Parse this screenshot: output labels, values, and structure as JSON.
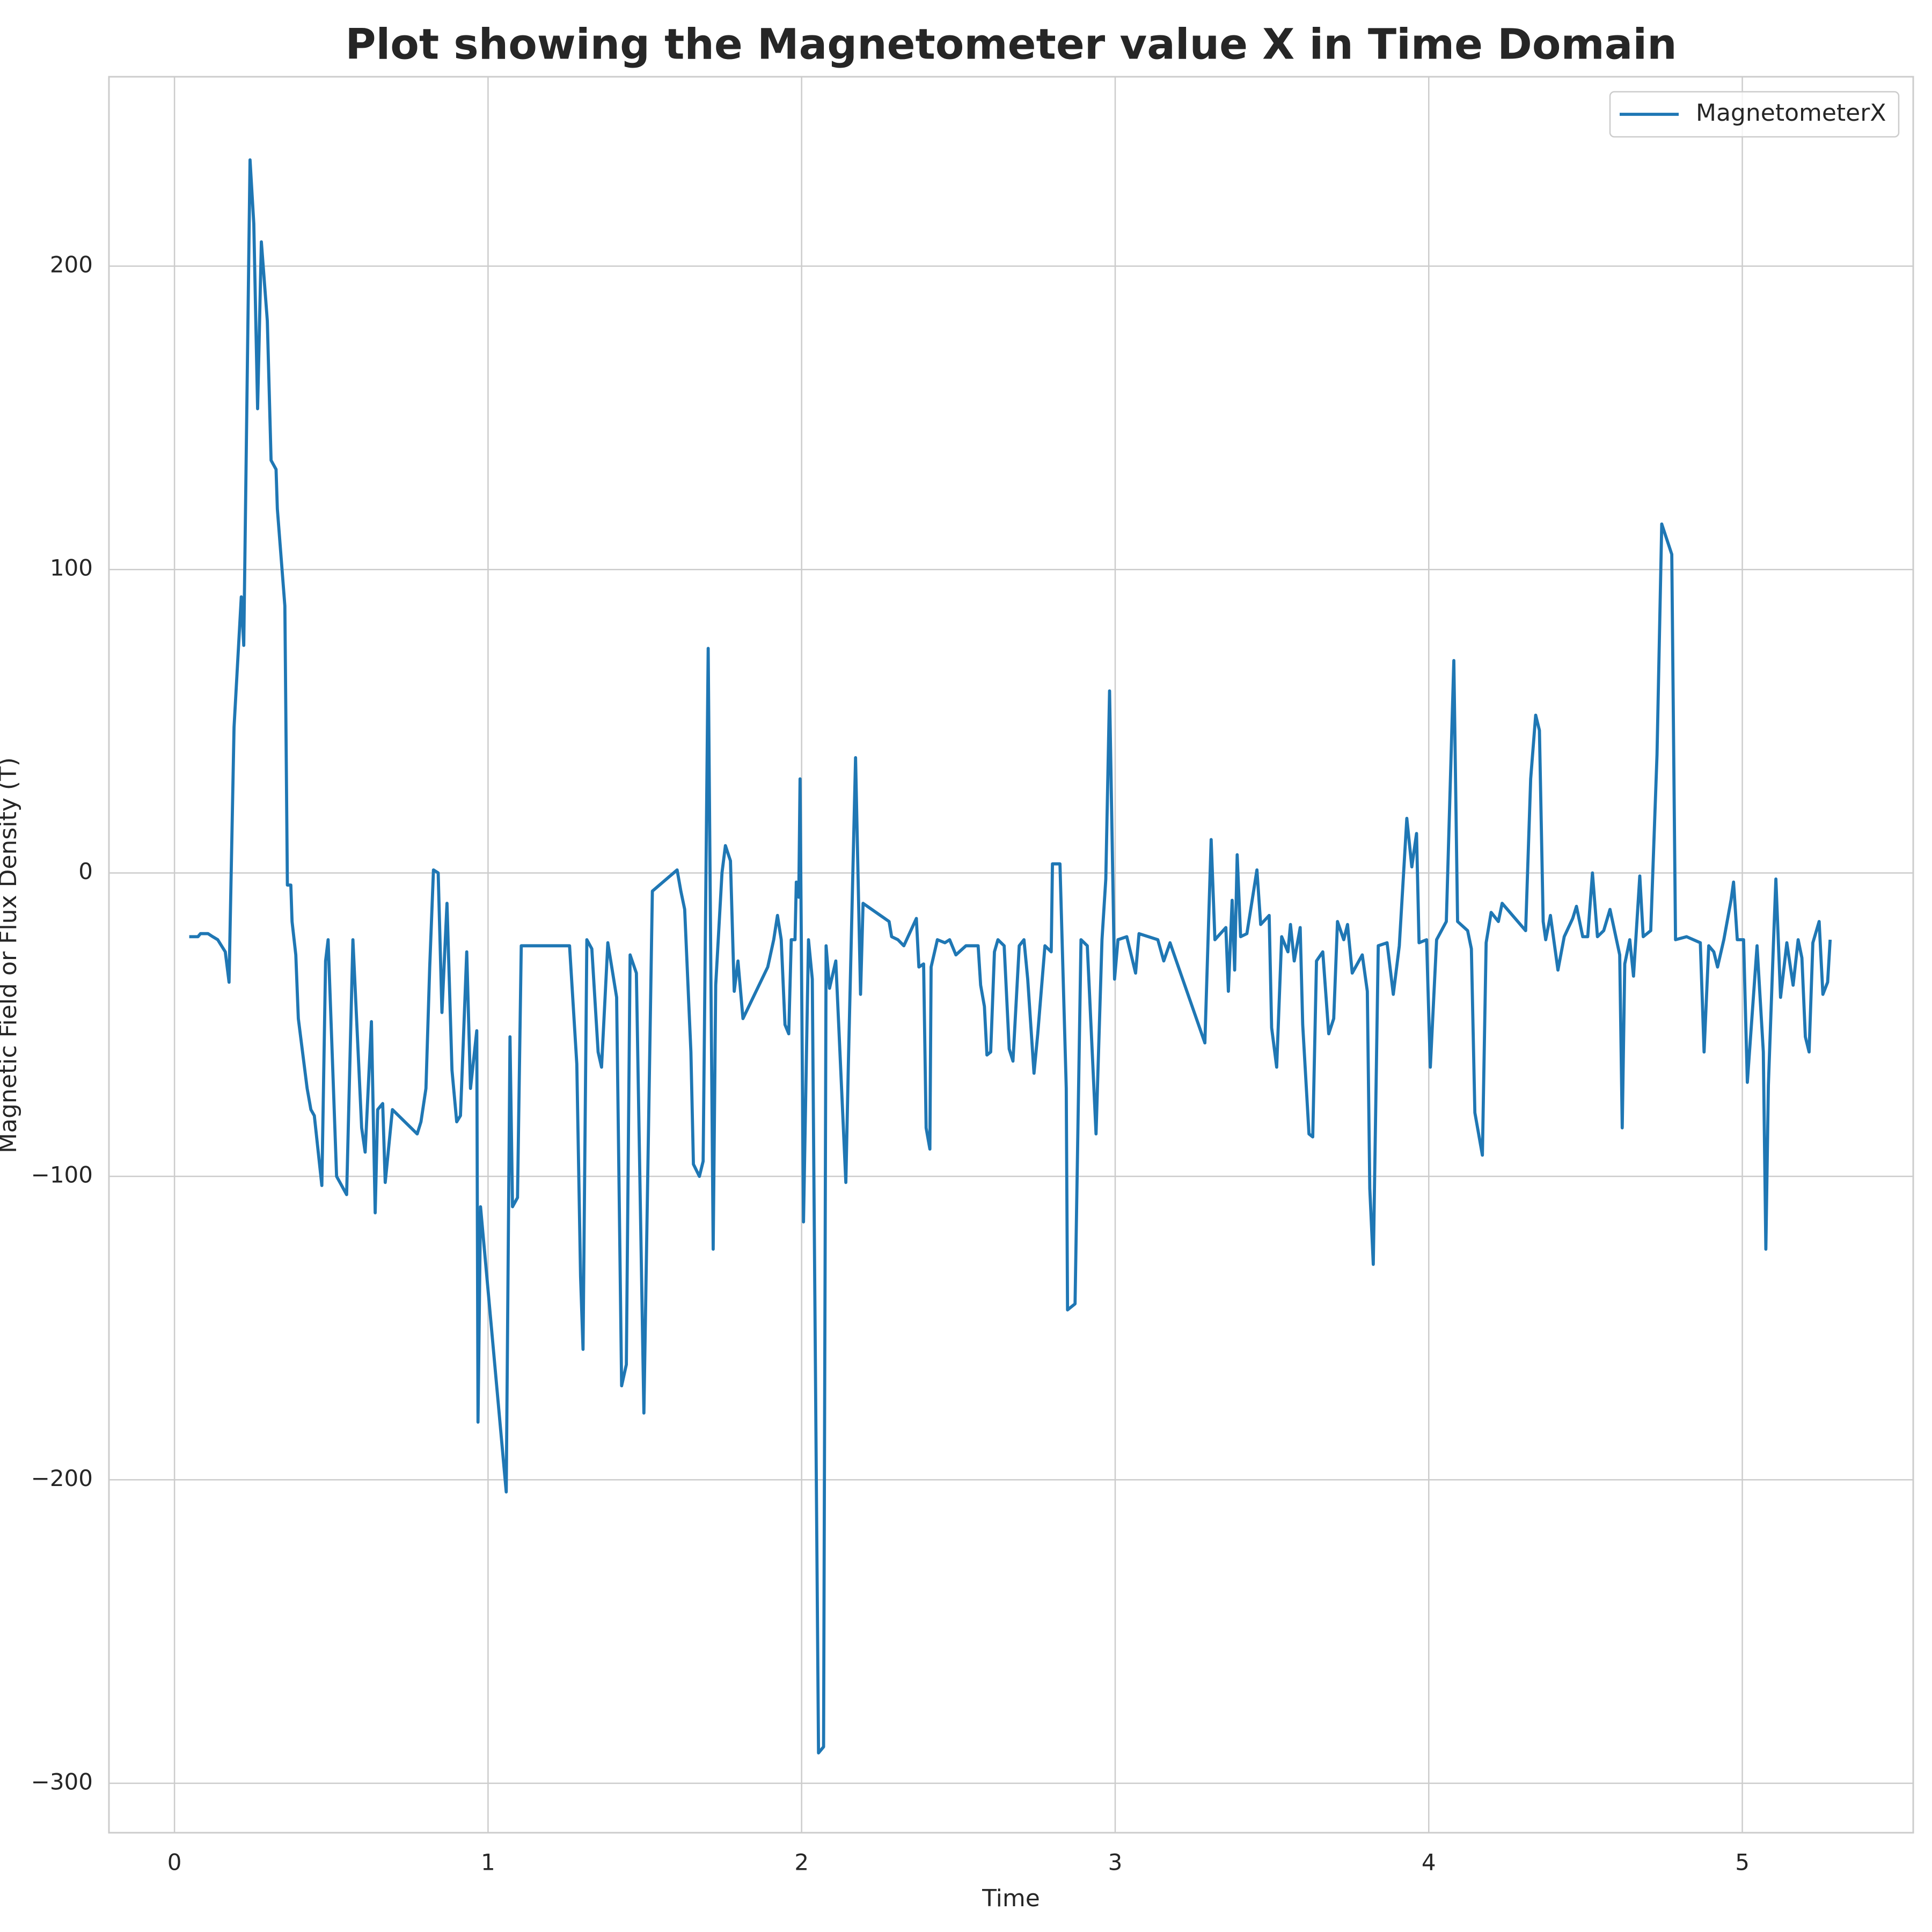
{
  "chart_data": {
    "type": "line",
    "title": "Plot showing the Magnetometer value X in Time Domain",
    "x_label": "Time",
    "y_label": "Magnetic Field or Flux Density (T)",
    "xlim": [
      -0.209,
      5.545
    ],
    "ylim": [
      -316.3,
      262.4
    ],
    "xticks": [
      0,
      1,
      2,
      3,
      4,
      5
    ],
    "yticks": [
      {
        "value": -300,
        "label": "−300"
      },
      {
        "value": -200,
        "label": "−200"
      },
      {
        "value": -100,
        "label": "−100"
      },
      0,
      100,
      200
    ],
    "grid": true,
    "legend": "upper right",
    "x": [
      0.047,
      0.075,
      0.083,
      0.107,
      0.122,
      0.138,
      0.162,
      0.174,
      0.19,
      0.213,
      0.221,
      0.241,
      0.253,
      0.265,
      0.277,
      0.296,
      0.308,
      0.324,
      0.328,
      0.352,
      0.36,
      0.371,
      0.375,
      0.387,
      0.395,
      0.423,
      0.435,
      0.446,
      0.47,
      0.482,
      0.49,
      0.517,
      0.549,
      0.569,
      0.597,
      0.608,
      0.628,
      0.64,
      0.648,
      0.664,
      0.672,
      0.695,
      0.774,
      0.786,
      0.802,
      0.814,
      0.826,
      0.841,
      0.853,
      0.869,
      0.885,
      0.9,
      0.912,
      0.932,
      0.944,
      0.964,
      0.968,
      0.976,
      1.058,
      1.07,
      1.078,
      1.094,
      1.106,
      1.26,
      1.283,
      1.295,
      1.303,
      1.315,
      1.331,
      1.351,
      1.362,
      1.382,
      1.41,
      1.426,
      1.441,
      1.453,
      1.473,
      1.497,
      1.524,
      1.603,
      1.615,
      1.627,
      1.647,
      1.655,
      1.674,
      1.686,
      1.702,
      1.718,
      1.726,
      1.746,
      1.757,
      1.773,
      1.785,
      1.797,
      1.813,
      1.892,
      1.911,
      1.923,
      1.935,
      1.947,
      1.959,
      1.967,
      1.979,
      1.983,
      1.991,
      1.995,
      2.006,
      2.022,
      2.034,
      2.054,
      2.07,
      2.078,
      2.089,
      2.109,
      2.141,
      2.149,
      2.172,
      2.188,
      2.196,
      2.279,
      2.287,
      2.307,
      2.326,
      2.366,
      2.374,
      2.389,
      2.397,
      2.409,
      2.413,
      2.433,
      2.457,
      2.472,
      2.492,
      2.524,
      2.563,
      2.571,
      2.583,
      2.591,
      2.603,
      2.615,
      2.626,
      2.646,
      2.662,
      2.674,
      2.694,
      2.709,
      2.721,
      2.741,
      2.753,
      2.776,
      2.796,
      2.8,
      2.824,
      2.844,
      2.848,
      2.872,
      2.891,
      2.911,
      2.939,
      2.958,
      2.97,
      2.982,
      2.998,
      3.009,
      3.037,
      3.065,
      3.076,
      3.136,
      3.155,
      3.175,
      3.195,
      3.286,
      3.306,
      3.318,
      3.353,
      3.361,
      3.373,
      3.381,
      3.389,
      3.4,
      3.42,
      3.452,
      3.464,
      3.491,
      3.499,
      3.515,
      3.531,
      3.551,
      3.559,
      3.571,
      3.59,
      3.598,
      3.618,
      3.63,
      3.642,
      3.662,
      3.681,
      3.697,
      3.709,
      3.729,
      3.741,
      3.756,
      3.788,
      3.804,
      3.812,
      3.823,
      3.839,
      3.867,
      3.887,
      3.906,
      3.93,
      3.946,
      3.961,
      3.969,
      3.993,
      4.005,
      4.025,
      4.056,
      4.08,
      4.092,
      4.124,
      4.136,
      4.147,
      4.171,
      4.183,
      4.199,
      4.222,
      4.234,
      4.309,
      4.325,
      4.341,
      4.353,
      4.365,
      4.373,
      4.388,
      4.412,
      4.432,
      4.459,
      4.471,
      4.491,
      4.507,
      4.522,
      4.538,
      4.558,
      4.578,
      4.609,
      4.617,
      4.625,
      4.641,
      4.653,
      4.673,
      4.684,
      4.708,
      4.728,
      4.743,
      4.775,
      4.787,
      4.822,
      4.866,
      4.878,
      4.893,
      4.909,
      4.921,
      4.941,
      4.964,
      4.972,
      4.984,
      5.004,
      5.016,
      5.047,
      5.067,
      5.075,
      5.083,
      5.099,
      5.107,
      5.122,
      5.142,
      5.162,
      5.178,
      5.19,
      5.201,
      5.213,
      5.225,
      5.245,
      5.257,
      5.272,
      5.28
    ],
    "series": [
      {
        "name": "MagnetometerX",
        "color": "#1f77b4",
        "values": [
          -21,
          -21,
          -20,
          -20,
          -21,
          -22,
          -26,
          -36,
          48,
          91,
          75,
          235,
          214,
          153,
          208,
          182,
          136,
          133,
          120,
          88,
          -4,
          -4,
          -16,
          -27,
          -48,
          -71,
          -78,
          -80,
          -103,
          -29,
          -22,
          -100,
          -106,
          -22,
          -84,
          -92,
          -49,
          -112,
          -78,
          -76,
          -102,
          -78,
          -86,
          -82,
          -71,
          -31,
          1,
          0,
          -46,
          -10,
          -65,
          -82,
          -80,
          -26,
          -71,
          -52,
          -181,
          -110,
          -204,
          -54,
          -110,
          -107,
          -24,
          -24,
          -63,
          -133,
          -157,
          -22,
          -25,
          -59,
          -64,
          -23,
          -41,
          -169,
          -162,
          -27,
          -33,
          -178,
          -6,
          1,
          -6,
          -12,
          -59,
          -96,
          -100,
          -95,
          74,
          -124,
          -37,
          0,
          9,
          4,
          -39,
          -29,
          -48,
          -31,
          -22,
          -14,
          -22,
          -50,
          -53,
          -22,
          -22,
          -3,
          -8,
          31,
          -115,
          -22,
          -35,
          -290,
          -288,
          -24,
          -38,
          -29,
          -102,
          -63,
          38,
          -40,
          -10,
          -16,
          -21,
          -22,
          -24,
          -15,
          -31,
          -30,
          -84,
          -91,
          -31,
          -22,
          -23,
          -22,
          -27,
          -24,
          -24,
          -37,
          -44,
          -60,
          -59,
          -26,
          -22,
          -24,
          -58,
          -62,
          -24,
          -22,
          -35,
          -66,
          -53,
          -24,
          -26,
          3,
          3,
          -71,
          -144,
          -142,
          -22,
          -24,
          -86,
          -22,
          -2,
          60,
          -35,
          -22,
          -21,
          -33,
          -20,
          -22,
          -29,
          -23,
          -29,
          -56,
          11,
          -22,
          -18,
          -39,
          -9,
          -32,
          6,
          -21,
          -20,
          1,
          -17,
          -14,
          -51,
          -64,
          -21,
          -26,
          -17,
          -29,
          -18,
          -50,
          -86,
          -87,
          -29,
          -26,
          -53,
          -48,
          -16,
          -22,
          -17,
          -33,
          -27,
          -39,
          -104,
          -129,
          -24,
          -23,
          -40,
          -24,
          18,
          2,
          13,
          -23,
          -22,
          -64,
          -22,
          -16,
          70,
          -16,
          -19,
          -25,
          -79,
          -93,
          -23,
          -13,
          -16,
          -10,
          -19,
          31,
          52,
          47,
          -16,
          -22,
          -14,
          -32,
          -21,
          -15,
          -11,
          -21,
          -21,
          0,
          -21,
          -19,
          -12,
          -27,
          -84,
          -30,
          -22,
          -34,
          -1,
          -21,
          -19,
          39,
          115,
          105,
          -22,
          -21,
          -23,
          -59,
          -24,
          -26,
          -31,
          -22,
          -9,
          -3,
          -22,
          -22,
          -69,
          -24,
          -59,
          -124,
          -70,
          -24,
          -2,
          -41,
          -23,
          -37,
          -22,
          -28,
          -54,
          -59,
          -23,
          -16,
          -40,
          -36,
          -22
        ]
      }
    ]
  }
}
